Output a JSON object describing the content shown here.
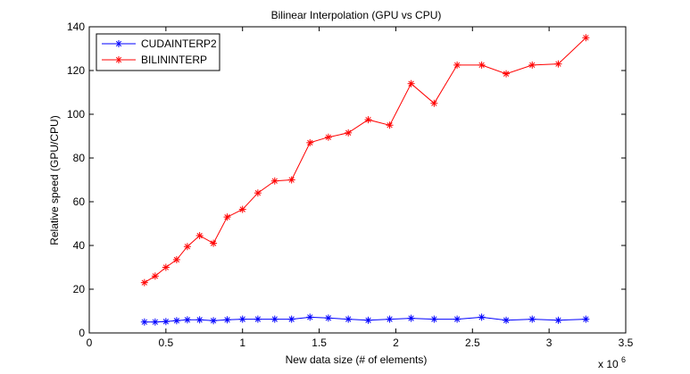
{
  "chart_data": {
    "type": "line",
    "title": "Bilinear Interpolation (GPU vs CPU)",
    "xlabel": "New data size (# of elements)",
    "ylabel": "Relative speed (GPU/CPU)",
    "x_exponent_label": "x 10",
    "x_exponent_power": "6",
    "xlim": [
      0,
      3.5
    ],
    "ylim": [
      0,
      140
    ],
    "xticks": [
      "0",
      "0.5",
      "1",
      "1.5",
      "2",
      "2.5",
      "3",
      "3.5"
    ],
    "yticks": [
      "0",
      "20",
      "40",
      "60",
      "80",
      "100",
      "120",
      "140"
    ],
    "xtick_values": [
      0,
      0.5,
      1,
      1.5,
      2,
      2.5,
      3,
      3.5
    ],
    "ytick_values": [
      0,
      20,
      40,
      60,
      80,
      100,
      120,
      140
    ],
    "grid": false,
    "legend_position": "top-left",
    "series": [
      {
        "name": "CUDAINTERP2",
        "color": "#0000ff",
        "marker": "asterisk",
        "x": [
          0.36,
          0.43,
          0.5,
          0.57,
          0.64,
          0.72,
          0.81,
          0.9,
          1.0,
          1.1,
          1.21,
          1.32,
          1.44,
          1.56,
          1.69,
          1.82,
          1.96,
          2.1,
          2.25,
          2.4,
          2.56,
          2.72,
          2.89,
          3.06,
          3.24
        ],
        "values": [
          5.0,
          5.0,
          5.2,
          5.6,
          6.0,
          6.0,
          5.6,
          6.0,
          6.3,
          6.3,
          6.3,
          6.3,
          7.2,
          6.8,
          6.3,
          5.8,
          6.3,
          6.7,
          6.3,
          6.3,
          7.2,
          5.8,
          6.3,
          5.8,
          6.3
        ]
      },
      {
        "name": "BILININTERP",
        "color": "#ff0000",
        "marker": "asterisk",
        "x": [
          0.36,
          0.43,
          0.5,
          0.57,
          0.64,
          0.72,
          0.81,
          0.9,
          1.0,
          1.1,
          1.21,
          1.32,
          1.44,
          1.56,
          1.69,
          1.82,
          1.96,
          2.1,
          2.25,
          2.4,
          2.56,
          2.72,
          2.89,
          3.06,
          3.24
        ],
        "values": [
          23.0,
          26.0,
          30.0,
          33.5,
          39.5,
          44.5,
          41.0,
          53.0,
          56.5,
          64.0,
          69.5,
          70.0,
          87.0,
          89.5,
          91.5,
          97.5,
          95.0,
          114.0,
          105.0,
          122.5,
          122.5,
          118.5,
          122.5,
          123.0,
          135.0
        ]
      }
    ]
  }
}
